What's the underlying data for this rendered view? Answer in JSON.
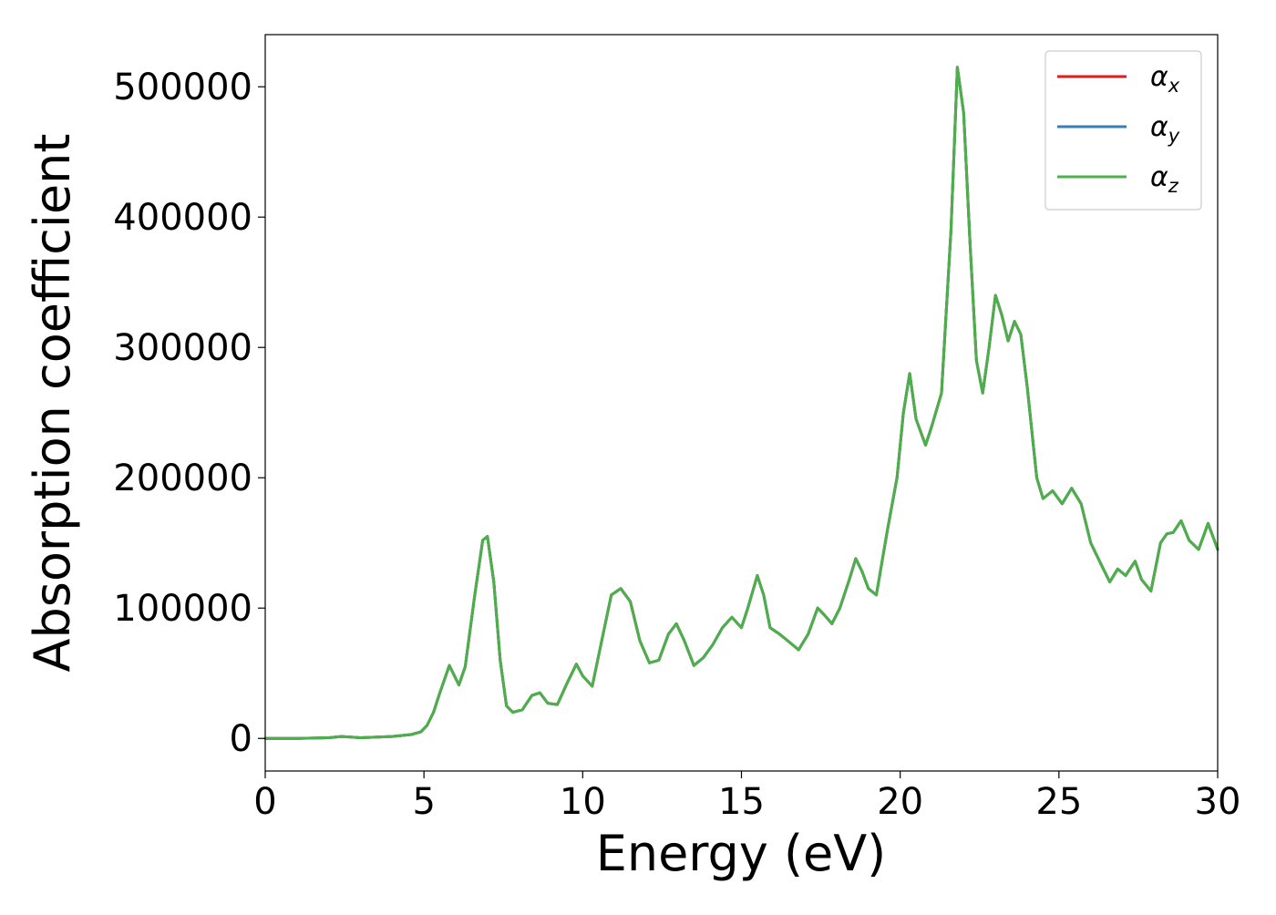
{
  "chart_data": {
    "type": "line",
    "xlabel": "Energy (eV)",
    "ylabel": "Absorption coefficient",
    "xlim": [
      0,
      30
    ],
    "ylim": [
      -25000,
      540000
    ],
    "xticks": [
      0,
      5,
      10,
      15,
      20,
      25,
      30
    ],
    "yticks": [
      0,
      100000,
      200000,
      300000,
      400000,
      500000
    ],
    "grid": false,
    "legend_position": "top-right",
    "legend": [
      {
        "symbol": "α",
        "subscript": "x",
        "color": "#e41a1c"
      },
      {
        "symbol": "α",
        "subscript": "y",
        "color": "#377eb8"
      },
      {
        "symbol": "α",
        "subscript": "z",
        "color": "#4daf4a"
      }
    ],
    "x": [
      0,
      1,
      2,
      2.4,
      3,
      4,
      4.6,
      4.9,
      5.1,
      5.3,
      5.5,
      5.8,
      6.1,
      6.3,
      6.6,
      6.85,
      7.0,
      7.2,
      7.4,
      7.6,
      7.8,
      8.1,
      8.4,
      8.65,
      8.9,
      9.2,
      9.5,
      9.8,
      10.0,
      10.3,
      10.6,
      10.9,
      11.2,
      11.5,
      11.8,
      12.1,
      12.4,
      12.7,
      12.95,
      13.2,
      13.5,
      13.8,
      14.1,
      14.4,
      14.7,
      15.0,
      15.2,
      15.5,
      15.7,
      15.9,
      16.2,
      16.5,
      16.8,
      17.1,
      17.4,
      17.6,
      17.85,
      18.1,
      18.4,
      18.6,
      18.8,
      19.0,
      19.25,
      19.6,
      19.9,
      20.1,
      20.3,
      20.5,
      20.8,
      21.0,
      21.3,
      21.6,
      21.8,
      22.0,
      22.2,
      22.4,
      22.6,
      22.8,
      23.0,
      23.2,
      23.4,
      23.6,
      23.8,
      24.0,
      24.3,
      24.5,
      24.8,
      25.1,
      25.4,
      25.7,
      26.0,
      26.3,
      26.6,
      26.85,
      27.1,
      27.4,
      27.6,
      27.9,
      28.2,
      28.4,
      28.6,
      28.85,
      29.1,
      29.4,
      29.7,
      30.0
    ],
    "series": [
      {
        "values": [
          0,
          0,
          500,
          1500,
          500,
          1500,
          3000,
          5000,
          10000,
          20000,
          35000,
          56000,
          41000,
          55000,
          110000,
          152000,
          155000,
          120000,
          60000,
          25000,
          20000,
          22000,
          33000,
          35000,
          27000,
          26000,
          42000,
          57000,
          48000,
          40000,
          75000,
          110000,
          115000,
          105000,
          75000,
          58000,
          60000,
          80000,
          88000,
          75000,
          56000,
          62000,
          72000,
          85000,
          93000,
          85000,
          100000,
          125000,
          110000,
          85000,
          80000,
          74000,
          68000,
          80000,
          100000,
          95000,
          88000,
          100000,
          122000,
          138000,
          128000,
          115000,
          110000,
          160000,
          200000,
          250000,
          280000,
          245000,
          225000,
          240000,
          265000,
          390000,
          515000,
          480000,
          380000,
          290000,
          265000,
          300000,
          340000,
          325000,
          305000,
          320000,
          310000,
          270000,
          200000,
          184000,
          190000,
          180000,
          192000,
          180000,
          150000,
          135000,
          120000,
          130000,
          125000,
          136000,
          122000,
          113000,
          150000,
          157000,
          158000,
          167000,
          152000,
          145000,
          165000,
          145000
        ]
      },
      {
        "values": [
          0,
          0,
          500,
          1500,
          500,
          1500,
          3000,
          5000,
          10000,
          20000,
          35000,
          56000,
          41000,
          55000,
          110000,
          152000,
          155000,
          120000,
          60000,
          25000,
          20000,
          22000,
          33000,
          35000,
          27000,
          26000,
          42000,
          57000,
          48000,
          40000,
          75000,
          110000,
          115000,
          105000,
          75000,
          58000,
          60000,
          80000,
          88000,
          75000,
          56000,
          62000,
          72000,
          85000,
          93000,
          85000,
          100000,
          125000,
          110000,
          85000,
          80000,
          74000,
          68000,
          80000,
          100000,
          95000,
          88000,
          100000,
          122000,
          138000,
          128000,
          115000,
          110000,
          160000,
          200000,
          250000,
          280000,
          245000,
          225000,
          240000,
          265000,
          390000,
          515000,
          480000,
          380000,
          290000,
          265000,
          300000,
          340000,
          325000,
          305000,
          320000,
          310000,
          270000,
          200000,
          184000,
          190000,
          180000,
          192000,
          180000,
          150000,
          135000,
          120000,
          130000,
          125000,
          136000,
          122000,
          113000,
          150000,
          157000,
          158000,
          167000,
          152000,
          145000,
          165000,
          145000
        ]
      },
      {
        "values": [
          0,
          0,
          500,
          1500,
          500,
          1500,
          3000,
          5000,
          10000,
          20000,
          35000,
          56000,
          41000,
          55000,
          110000,
          152000,
          155000,
          120000,
          60000,
          25000,
          20000,
          22000,
          33000,
          35000,
          27000,
          26000,
          42000,
          57000,
          48000,
          40000,
          75000,
          110000,
          115000,
          105000,
          75000,
          58000,
          60000,
          80000,
          88000,
          75000,
          56000,
          62000,
          72000,
          85000,
          93000,
          85000,
          100000,
          125000,
          110000,
          85000,
          80000,
          74000,
          68000,
          80000,
          100000,
          95000,
          88000,
          100000,
          122000,
          138000,
          128000,
          115000,
          110000,
          160000,
          200000,
          250000,
          280000,
          245000,
          225000,
          240000,
          265000,
          390000,
          515000,
          480000,
          380000,
          290000,
          265000,
          300000,
          340000,
          325000,
          305000,
          320000,
          310000,
          270000,
          200000,
          184000,
          190000,
          180000,
          192000,
          180000,
          150000,
          135000,
          120000,
          130000,
          125000,
          136000,
          122000,
          113000,
          150000,
          157000,
          158000,
          167000,
          152000,
          145000,
          165000,
          145000
        ]
      }
    ]
  }
}
